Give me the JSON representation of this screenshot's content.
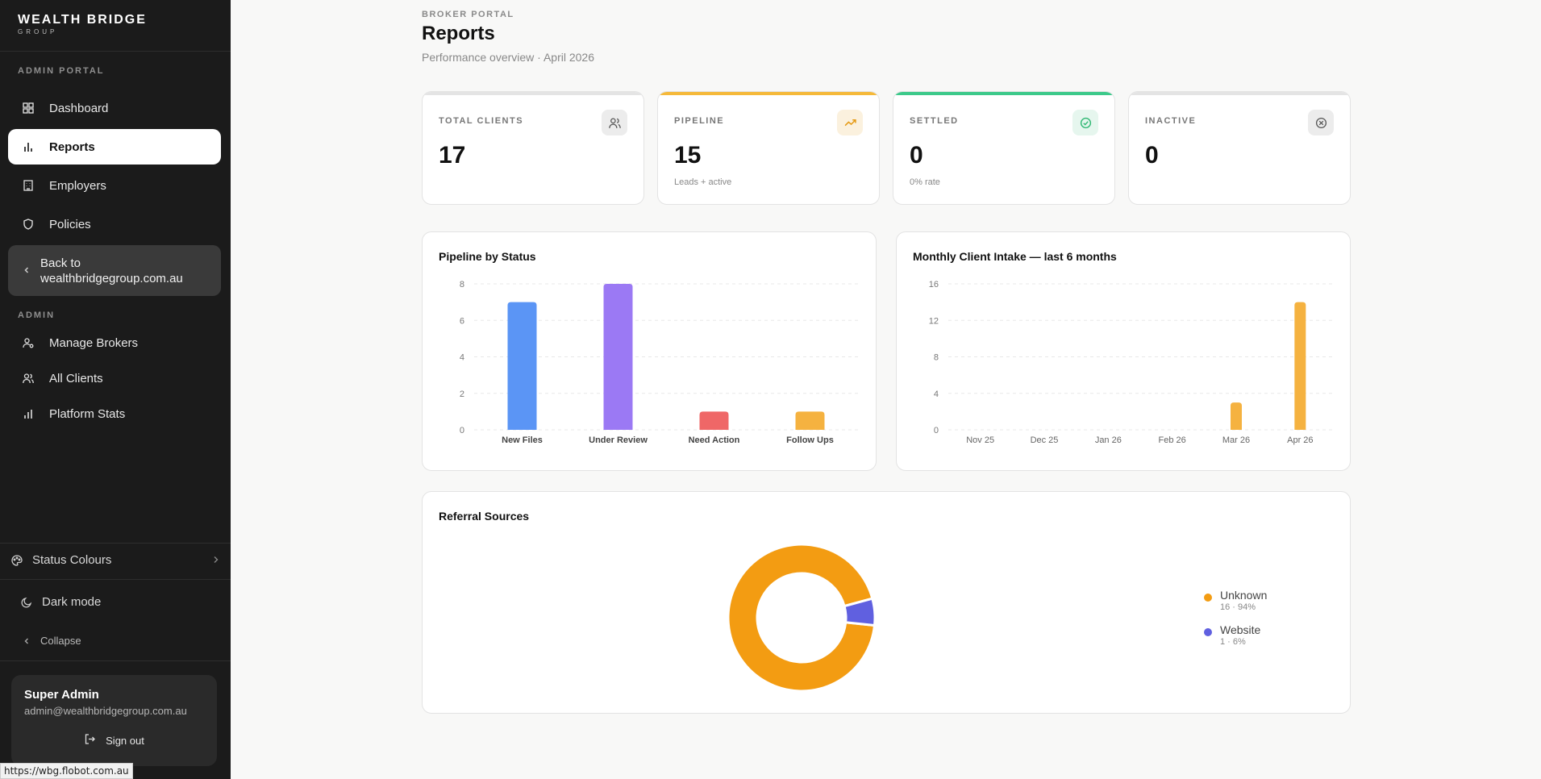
{
  "brand": {
    "name": "WEALTH BRIDGE",
    "sub": "GROUP"
  },
  "sidebar": {
    "section_admin_portal": "ADMIN PORTAL",
    "items": [
      {
        "label": "Dashboard",
        "icon": "dashboard-grid-icon"
      },
      {
        "label": "Reports",
        "icon": "bar-chart-icon",
        "active": true
      },
      {
        "label": "Employers",
        "icon": "building-icon"
      },
      {
        "label": "Policies",
        "icon": "shield-icon"
      }
    ],
    "back": {
      "line1": "Back to",
      "line2": "wealthbridgegroup.com.au"
    },
    "section_admin": "ADMIN",
    "admin_items": [
      {
        "label": "Manage Brokers",
        "icon": "user-settings-icon"
      },
      {
        "label": "All Clients",
        "icon": "users-icon"
      },
      {
        "label": "Platform Stats",
        "icon": "bar-chart-icon"
      }
    ],
    "status_colours": "Status Colours",
    "dark_mode": "Dark mode",
    "collapse": "Collapse",
    "user": {
      "name": "Super Admin",
      "email": "admin@wealthbridgegroup.com.au",
      "sign_out": "Sign out"
    }
  },
  "status_bar_url": "https://wbg.flobot.com.au",
  "header": {
    "eyebrow": "BROKER PORTAL",
    "title": "Reports",
    "subtitle": "Performance overview · April 2026"
  },
  "stats": [
    {
      "label": "TOTAL CLIENTS",
      "value": "17",
      "sub": "",
      "accent": "#e4e4e4",
      "icon": "users-icon"
    },
    {
      "label": "PIPELINE",
      "value": "15",
      "sub": "Leads + active",
      "accent": "#f5b93a",
      "icon": "trending-up-icon"
    },
    {
      "label": "SETTLED",
      "value": "0",
      "sub": "0% rate",
      "accent": "#3cc98a",
      "icon": "check-circle-icon"
    },
    {
      "label": "INACTIVE",
      "value": "0",
      "sub": "",
      "accent": "#e4e4e4",
      "icon": "x-circle-icon"
    }
  ],
  "panels": {
    "pipeline_title": "Pipeline by Status",
    "intake_title": "Monthly Client Intake — last 6 months",
    "referral_title": "Referral Sources"
  },
  "chart_data": [
    {
      "type": "bar",
      "title": "Pipeline by Status",
      "categories": [
        "New Files",
        "Under Review",
        "Need Action",
        "Follow Ups"
      ],
      "values": [
        7,
        8,
        1,
        1
      ],
      "colors": [
        "#5b95f5",
        "#9b79f4",
        "#ef6767",
        "#f5b240"
      ],
      "y_ticks": [
        0,
        2,
        4,
        6,
        8
      ],
      "ylim": [
        0,
        8
      ],
      "grid": true
    },
    {
      "type": "bar",
      "title": "Monthly Client Intake — last 6 months",
      "categories": [
        "Nov 25",
        "Dec 25",
        "Jan 26",
        "Feb 26",
        "Mar 26",
        "Apr 26"
      ],
      "values": [
        0,
        0,
        0,
        0,
        3,
        14
      ],
      "colors": [
        "#f5b240"
      ],
      "y_ticks": [
        0,
        4,
        8,
        12,
        16
      ],
      "ylim": [
        0,
        16
      ],
      "grid": true
    },
    {
      "type": "pie",
      "title": "Referral Sources",
      "labels": [
        "Unknown",
        "Website"
      ],
      "values": [
        16,
        1
      ],
      "percent_labels": [
        "16 · 94%",
        "1 · 6%"
      ],
      "colors": [
        "#f39c12",
        "#6060e0"
      ],
      "legend": "right"
    }
  ]
}
